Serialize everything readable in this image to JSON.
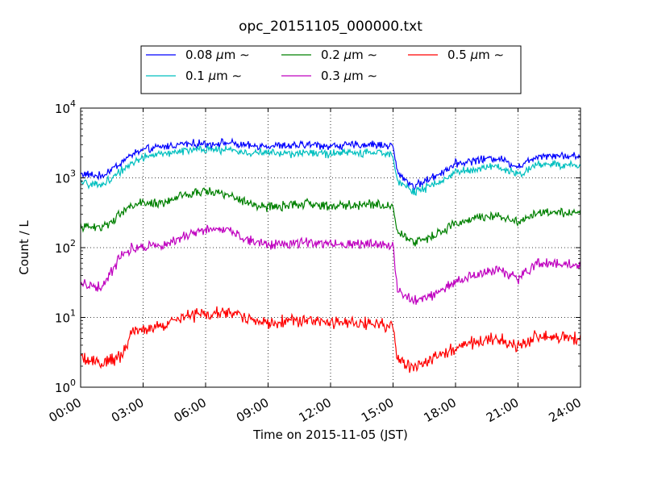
{
  "chart_data": {
    "type": "line",
    "title": "opc_20151105_000000.txt",
    "xlabel": "Time on 2015-11-05 (JST)",
    "ylabel": "Count / L",
    "x_unit": "hours (JST)",
    "xlim": [
      0,
      24
    ],
    "yscale": "log",
    "ylim": [
      1,
      10000
    ],
    "grid": true,
    "legend_position": "top-center, above plot",
    "x_tick_labels": [
      "00:00",
      "03:00",
      "06:00",
      "09:00",
      "12:00",
      "15:00",
      "18:00",
      "21:00",
      "24:00"
    ],
    "y_tick_labels": [
      {
        "base": "10",
        "exp": "0"
      },
      {
        "base": "10",
        "exp": "1"
      },
      {
        "base": "10",
        "exp": "2"
      },
      {
        "base": "10",
        "exp": "3"
      },
      {
        "base": "10",
        "exp": "4"
      }
    ],
    "x": [
      0,
      1,
      2,
      2.5,
      3,
      4,
      5,
      6,
      7,
      8,
      9,
      10,
      11,
      12,
      13,
      14,
      15,
      15.2,
      16,
      17,
      18,
      19,
      20,
      21,
      22,
      23,
      24
    ],
    "series": [
      {
        "name": "0.08",
        "unit": "μm",
        "suffix": "∼",
        "color": "#0000ff",
        "noise": 0.07,
        "values": [
          1150,
          1050,
          1700,
          2200,
          2500,
          2800,
          3100,
          3050,
          3200,
          2850,
          2900,
          2850,
          3000,
          2850,
          2950,
          3000,
          2900,
          1200,
          750,
          1050,
          1600,
          1800,
          1950,
          1450,
          2100,
          2100,
          2000
        ]
      },
      {
        "name": "0.1",
        "unit": "μm",
        "suffix": "∼",
        "color": "#00bfbf",
        "noise": 0.07,
        "values": [
          850,
          780,
          1300,
          1700,
          1950,
          2200,
          2500,
          2550,
          2550,
          2300,
          2300,
          2200,
          2350,
          2200,
          2300,
          2250,
          2200,
          950,
          620,
          800,
          1200,
          1350,
          1450,
          1100,
          1600,
          1550,
          1500
        ]
      },
      {
        "name": "0.2",
        "unit": "μm",
        "suffix": "∼",
        "color": "#008000",
        "noise": 0.08,
        "values": [
          200,
          190,
          320,
          420,
          430,
          440,
          560,
          650,
          580,
          440,
          380,
          400,
          430,
          390,
          410,
          420,
          400,
          170,
          120,
          150,
          220,
          270,
          290,
          240,
          320,
          330,
          310
        ]
      },
      {
        "name": "0.3",
        "unit": "μm",
        "suffix": "∼",
        "color": "#bf00bf",
        "noise": 0.09,
        "values": [
          31,
          27,
          80,
          100,
          105,
          115,
          145,
          180,
          185,
          130,
          110,
          115,
          120,
          110,
          115,
          115,
          110,
          25,
          17,
          22,
          32,
          40,
          50,
          35,
          60,
          60,
          55
        ]
      },
      {
        "name": "0.5",
        "unit": "μm",
        "suffix": "∼",
        "color": "#ff0000",
        "noise": 0.11,
        "values": [
          2.6,
          2.2,
          2.8,
          6.5,
          7,
          7.5,
          10.5,
          11,
          12,
          9.5,
          8.5,
          9,
          9.5,
          8,
          8.5,
          8,
          7.5,
          2.5,
          1.8,
          2.7,
          3.5,
          4.5,
          5,
          3.8,
          5.5,
          5,
          5
        ]
      }
    ]
  }
}
